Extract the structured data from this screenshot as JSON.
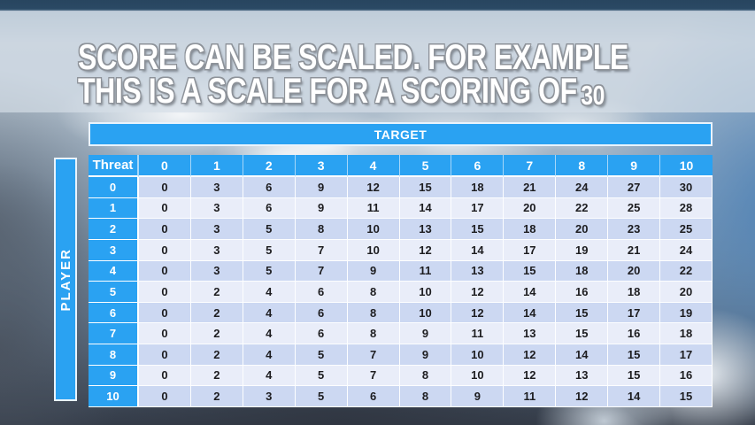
{
  "slide": {
    "title_line1": "SCORE CAN BE SCALED. FOR EXAMPLE",
    "title_line2_prefix": "THIS IS A SCALE FOR A SCORING OF",
    "title_scale_value": "30"
  },
  "matrix": {
    "target_label": "TARGET",
    "player_label": "PLAYER",
    "threat_label": "Threat",
    "column_headers": [
      "0",
      "1",
      "2",
      "3",
      "4",
      "5",
      "6",
      "7",
      "8",
      "9",
      "10"
    ],
    "rows": [
      {
        "threat": "0",
        "values": [
          0,
          3,
          6,
          9,
          12,
          15,
          18,
          21,
          24,
          27,
          30
        ]
      },
      {
        "threat": "1",
        "values": [
          0,
          3,
          6,
          9,
          11,
          14,
          17,
          20,
          22,
          25,
          28
        ]
      },
      {
        "threat": "2",
        "values": [
          0,
          3,
          5,
          8,
          10,
          13,
          15,
          18,
          20,
          23,
          25
        ]
      },
      {
        "threat": "3",
        "values": [
          0,
          3,
          5,
          7,
          10,
          12,
          14,
          17,
          19,
          21,
          24
        ]
      },
      {
        "threat": "4",
        "values": [
          0,
          3,
          5,
          7,
          9,
          11,
          13,
          15,
          18,
          20,
          22
        ]
      },
      {
        "threat": "5",
        "values": [
          0,
          2,
          4,
          6,
          8,
          10,
          12,
          14,
          16,
          18,
          20
        ]
      },
      {
        "threat": "6",
        "values": [
          0,
          2,
          4,
          6,
          8,
          10,
          12,
          14,
          15,
          17,
          19
        ]
      },
      {
        "threat": "7",
        "values": [
          0,
          2,
          4,
          6,
          8,
          9,
          11,
          13,
          15,
          16,
          18
        ]
      },
      {
        "threat": "8",
        "values": [
          0,
          2,
          4,
          5,
          7,
          9,
          10,
          12,
          14,
          15,
          17
        ]
      },
      {
        "threat": "9",
        "values": [
          0,
          2,
          4,
          5,
          7,
          8,
          10,
          12,
          13,
          15,
          16
        ]
      },
      {
        "threat": "10",
        "values": [
          0,
          2,
          3,
          5,
          6,
          8,
          9,
          11,
          12,
          14,
          15
        ]
      }
    ]
  },
  "colors": {
    "header_blue": "#2aa2f2",
    "row_even": "#ccd8f2",
    "row_odd": "#e9edf9",
    "title_text": "#ffffff"
  },
  "chart_data": {
    "type": "table",
    "col_axis_label": "TARGET",
    "row_axis_label": "PLAYER",
    "corner_label": "Threat",
    "columns": [
      "0",
      "1",
      "2",
      "3",
      "4",
      "5",
      "6",
      "7",
      "8",
      "9",
      "10"
    ],
    "row_headers": [
      "0",
      "1",
      "2",
      "3",
      "4",
      "5",
      "6",
      "7",
      "8",
      "9",
      "10"
    ],
    "values": [
      [
        0,
        3,
        6,
        9,
        12,
        15,
        18,
        21,
        24,
        27,
        30
      ],
      [
        0,
        3,
        6,
        9,
        11,
        14,
        17,
        20,
        22,
        25,
        28
      ],
      [
        0,
        3,
        5,
        8,
        10,
        13,
        15,
        18,
        20,
        23,
        25
      ],
      [
        0,
        3,
        5,
        7,
        10,
        12,
        14,
        17,
        19,
        21,
        24
      ],
      [
        0,
        3,
        5,
        7,
        9,
        11,
        13,
        15,
        18,
        20,
        22
      ],
      [
        0,
        2,
        4,
        6,
        8,
        10,
        12,
        14,
        16,
        18,
        20
      ],
      [
        0,
        2,
        4,
        6,
        8,
        10,
        12,
        14,
        15,
        17,
        19
      ],
      [
        0,
        2,
        4,
        6,
        8,
        9,
        11,
        13,
        15,
        16,
        18
      ],
      [
        0,
        2,
        4,
        5,
        7,
        9,
        10,
        12,
        14,
        15,
        17
      ],
      [
        0,
        2,
        4,
        5,
        7,
        8,
        10,
        12,
        13,
        15,
        16
      ],
      [
        0,
        2,
        3,
        5,
        6,
        8,
        9,
        11,
        12,
        14,
        15
      ]
    ]
  }
}
